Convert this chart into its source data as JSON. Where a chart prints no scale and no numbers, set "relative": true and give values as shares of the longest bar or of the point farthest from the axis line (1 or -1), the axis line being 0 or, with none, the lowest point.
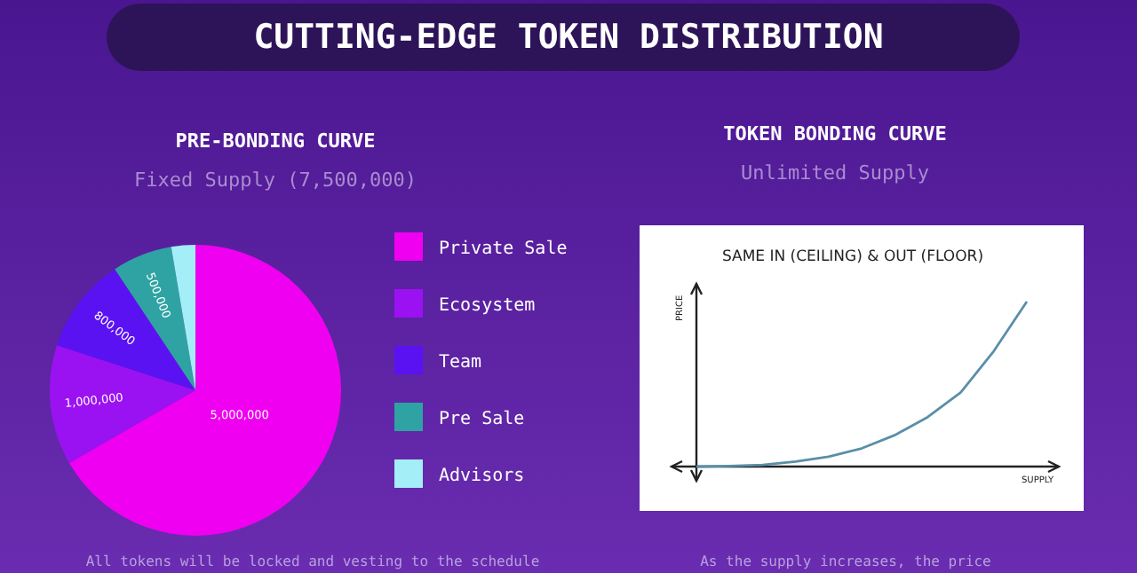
{
  "chart_data": [
    {
      "type": "pie",
      "title": "PRE-BONDING CURVE",
      "subtitle": "Fixed Supply (7,500,000)",
      "annotations": [
        "CUTTING-EDGE TOKEN DISTRIBUTION",
        "All tokens will be locked and vesting to the schedule"
      ],
      "categories": [
        "Private Sale",
        "Ecosystem",
        "Team",
        "Pre Sale",
        "Advisors"
      ],
      "values": [
        5000000,
        1000000,
        800000,
        500000,
        200000
      ],
      "colors": [
        "#f000f0",
        "#9b12f2",
        "#5a12f2",
        "#2fa3a3",
        "#a4eef8"
      ],
      "value_labels": [
        "5,000,000",
        "1,000,000",
        "800,000",
        "500,000",
        null
      ],
      "legend": "right"
    },
    {
      "type": "line",
      "title": "TOKEN BONDING CURVE",
      "subtitle": "Unlimited Supply",
      "annotations": [
        "SAME IN (CEILING) & OUT (FLOOR)",
        "As the supply increases, the price"
      ],
      "xlabel": "SUPPLY",
      "ylabel": "PRICE",
      "relative": true,
      "tick_labels": false,
      "grid": false,
      "categories": [
        null,
        null,
        null,
        null,
        null,
        null,
        null,
        null,
        null,
        null,
        null
      ],
      "series": [
        {
          "color": "#5a8fa8",
          "values": [
            0,
            0.003,
            0.01,
            0.03,
            0.06,
            0.11,
            0.19,
            0.3,
            0.45,
            0.7,
            1
          ]
        }
      ]
    }
  ]
}
